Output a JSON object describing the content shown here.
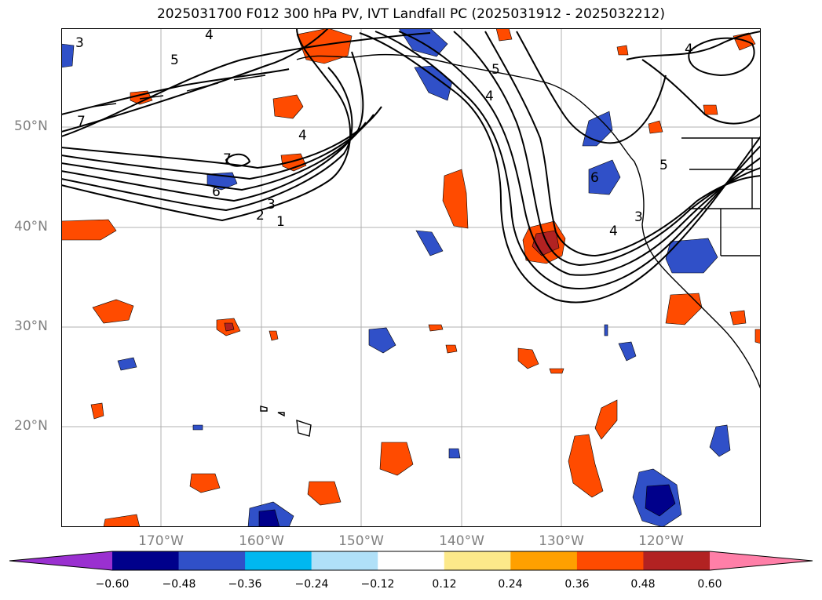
{
  "title": "2025031700 F012 300 hPa PV, IVT Landfall PC (2025031912 - 2025032212)",
  "lat_labels": [
    "50°N",
    "40°N",
    "30°N",
    "20°N"
  ],
  "lon_labels": [
    "170°W",
    "160°W",
    "150°W",
    "140°W",
    "130°W",
    "120°W"
  ],
  "contour_labels": [
    "3",
    "4",
    "5",
    "7",
    "7",
    "6",
    "3",
    "2",
    "1",
    "4",
    "5",
    "4",
    "6",
    "5",
    "4",
    "3",
    "4"
  ],
  "colorbar": {
    "ticks": [
      "−0.60",
      "−0.48",
      "−0.36",
      "−0.24",
      "−0.12",
      "0.12",
      "0.24",
      "0.36",
      "0.48",
      "0.60"
    ],
    "colors": [
      "#9a30d0",
      "#00008b",
      "#3050c8",
      "#00b8f0",
      "#b0e0f8",
      "#ffffff",
      "#fce98a",
      "#ffa000",
      "#ff4b00",
      "#b22222",
      "#ff7fa8"
    ]
  }
}
